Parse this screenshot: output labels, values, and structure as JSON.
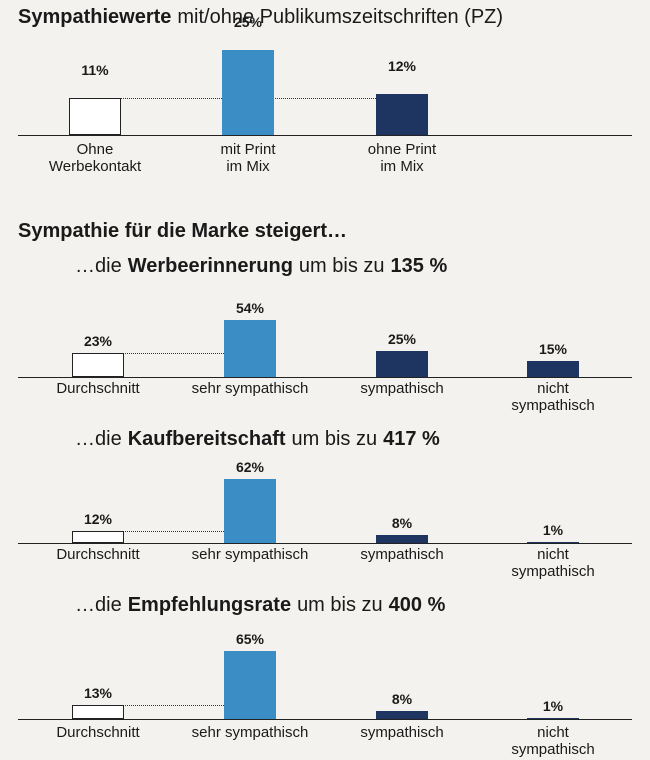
{
  "section_heading": "Sympathie für die Marke steigert…",
  "chart_data": [
    {
      "type": "bar",
      "title": [
        {
          "text": "Sympathiewerte",
          "bold": true
        },
        {
          "text": "mit/ohne Publikumszeitschriften (PZ)",
          "bold": false
        }
      ],
      "categories": [
        "Ohne\nWerbekontakt",
        "mit Print\nim Mix",
        "ohne Print\nim Mix"
      ],
      "values": [
        11,
        25,
        12
      ],
      "value_labels": [
        "11%",
        "25%",
        "12%"
      ],
      "colors": [
        "#ffffff",
        "#3a8dc5",
        "#1e3461"
      ]
    },
    {
      "type": "bar",
      "title": [
        {
          "text": "…die",
          "bold": false
        },
        {
          "text": "Werbeerinnerung",
          "bold": true
        },
        {
          "text": "um bis zu",
          "bold": false
        },
        {
          "text": "135 %",
          "bold": true
        }
      ],
      "categories": [
        "Durchschnitt",
        "sehr sympathisch",
        "sympathisch",
        "nicht sympathisch"
      ],
      "values": [
        23,
        54,
        25,
        15
      ],
      "value_labels": [
        "23%",
        "54%",
        "25%",
        "15%"
      ],
      "colors": [
        "#ffffff",
        "#3a8dc5",
        "#1e3461",
        "#1e3461"
      ]
    },
    {
      "type": "bar",
      "title": [
        {
          "text": "…die",
          "bold": false
        },
        {
          "text": "Kaufbereitschaft",
          "bold": true
        },
        {
          "text": "um bis zu",
          "bold": false
        },
        {
          "text": "417 %",
          "bold": true
        }
      ],
      "categories": [
        "Durchschnitt",
        "sehr sympathisch",
        "sympathisch",
        "nicht sympathisch"
      ],
      "values": [
        12,
        62,
        8,
        1
      ],
      "value_labels": [
        "12%",
        "62%",
        "8%",
        "1%"
      ],
      "colors": [
        "#ffffff",
        "#3a8dc5",
        "#1e3461",
        "#1e3461"
      ]
    },
    {
      "type": "bar",
      "title": [
        {
          "text": "…die",
          "bold": false
        },
        {
          "text": "Empfehlungsrate",
          "bold": true
        },
        {
          "text": "um bis zu",
          "bold": false
        },
        {
          "text": "400 %",
          "bold": true
        }
      ],
      "categories": [
        "Durchschnitt",
        "sehr sympathisch",
        "sympathisch",
        "nicht sympathisch"
      ],
      "values": [
        13,
        65,
        8,
        1
      ],
      "value_labels": [
        "13%",
        "65%",
        "8%",
        "1%"
      ],
      "colors": [
        "#ffffff",
        "#3a8dc5",
        "#1e3461",
        "#1e3461"
      ]
    }
  ]
}
